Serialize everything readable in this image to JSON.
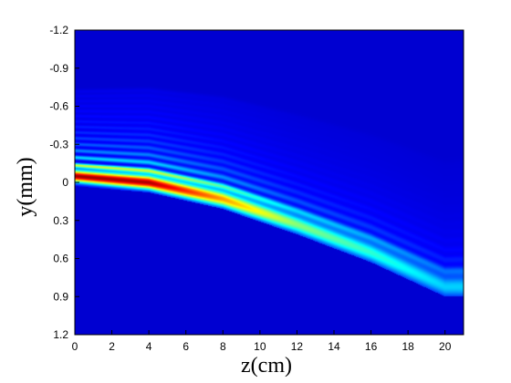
{
  "chart_data": {
    "type": "heatmap",
    "title": "",
    "xlabel": "z(cm)",
    "ylabel": "y(mm)",
    "xlim": [
      0,
      21
    ],
    "ylim": [
      -1.2,
      1.2
    ],
    "y_axis_direction": "increasing-downward",
    "x_ticks": [
      0,
      2,
      4,
      6,
      8,
      10,
      12,
      14,
      16,
      18,
      20
    ],
    "x_tick_labels": [
      "0",
      "2",
      "4",
      "6",
      "8",
      "10",
      "12",
      "14",
      "16",
      "18",
      "20"
    ],
    "y_ticks": [
      -1.2,
      -0.9,
      -0.6,
      -0.3,
      0,
      0.3,
      0.6,
      0.9,
      1.2
    ],
    "y_tick_labels": [
      "-1.2",
      "-0.9",
      "-0.6",
      "-0.3",
      "0",
      "0.3",
      "0.6",
      "0.9",
      "1.2"
    ],
    "colormap": "jet",
    "grid": false,
    "beam": {
      "description_points": [
        {
          "z": 0,
          "y": -0.05,
          "relative_intensity": 1.0
        },
        {
          "z": 4,
          "y": 0.0,
          "relative_intensity": 0.98
        },
        {
          "z": 8,
          "y": 0.13,
          "relative_intensity": 0.72
        },
        {
          "z": 12,
          "y": 0.33,
          "relative_intensity": 0.48
        },
        {
          "z": 16,
          "y": 0.55,
          "relative_intensity": 0.38
        },
        {
          "z": 20,
          "y": 0.82,
          "relative_intensity": 0.28
        }
      ],
      "side_lobes": 14
    }
  }
}
